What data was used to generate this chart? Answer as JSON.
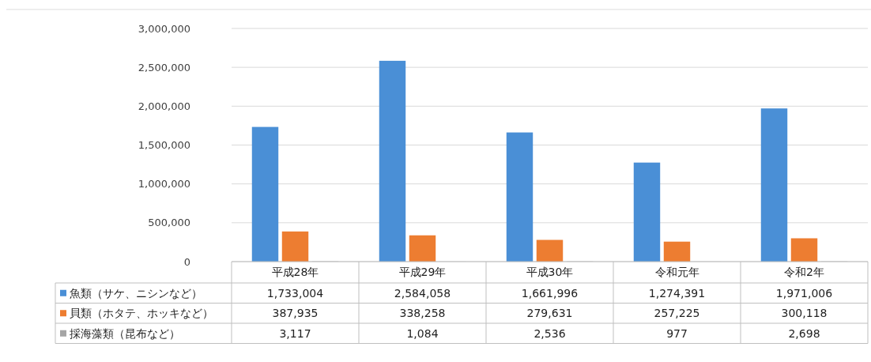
{
  "chart_data": {
    "type": "bar",
    "categories": [
      "平成28年",
      "平成29年",
      "平成30年",
      "令和元年",
      "令和2年"
    ],
    "series": [
      {
        "name": "魚類（サケ、ニシンなど）",
        "color": "#4a8fd6",
        "values": [
          1733004,
          2584058,
          1661996,
          1274391,
          1971006
        ],
        "value_labels": [
          "1,733,004",
          "2,584,058",
          "1,661,996",
          "1,274,391",
          "1,971,006"
        ]
      },
      {
        "name": "貝類（ホタテ、ホッキなど）",
        "color": "#ed7d31",
        "values": [
          387935,
          338258,
          279631,
          257225,
          300118
        ],
        "value_labels": [
          "387,935",
          "338,258",
          "279,631",
          "257,225",
          "300,118"
        ]
      },
      {
        "name": "採海藻類（昆布など）",
        "color": "#a5a5a5",
        "values": [
          3117,
          1084,
          2536,
          977,
          2698
        ],
        "value_labels": [
          "3,117",
          "1,084",
          "2,536",
          "977",
          "2,698"
        ]
      }
    ],
    "ylim": [
      0,
      3000000
    ],
    "yticks": [
      {
        "value": 0,
        "label": "0"
      },
      {
        "value": 500000,
        "label": "500,000"
      },
      {
        "value": 1000000,
        "label": "1,000,000"
      },
      {
        "value": 1500000,
        "label": "1,500,000"
      },
      {
        "value": 2000000,
        "label": "2,000,000"
      },
      {
        "value": 2500000,
        "label": "2,500,000"
      },
      {
        "value": 3000000,
        "label": "3,000,000"
      }
    ],
    "grid": "y",
    "legend": "bottom"
  }
}
